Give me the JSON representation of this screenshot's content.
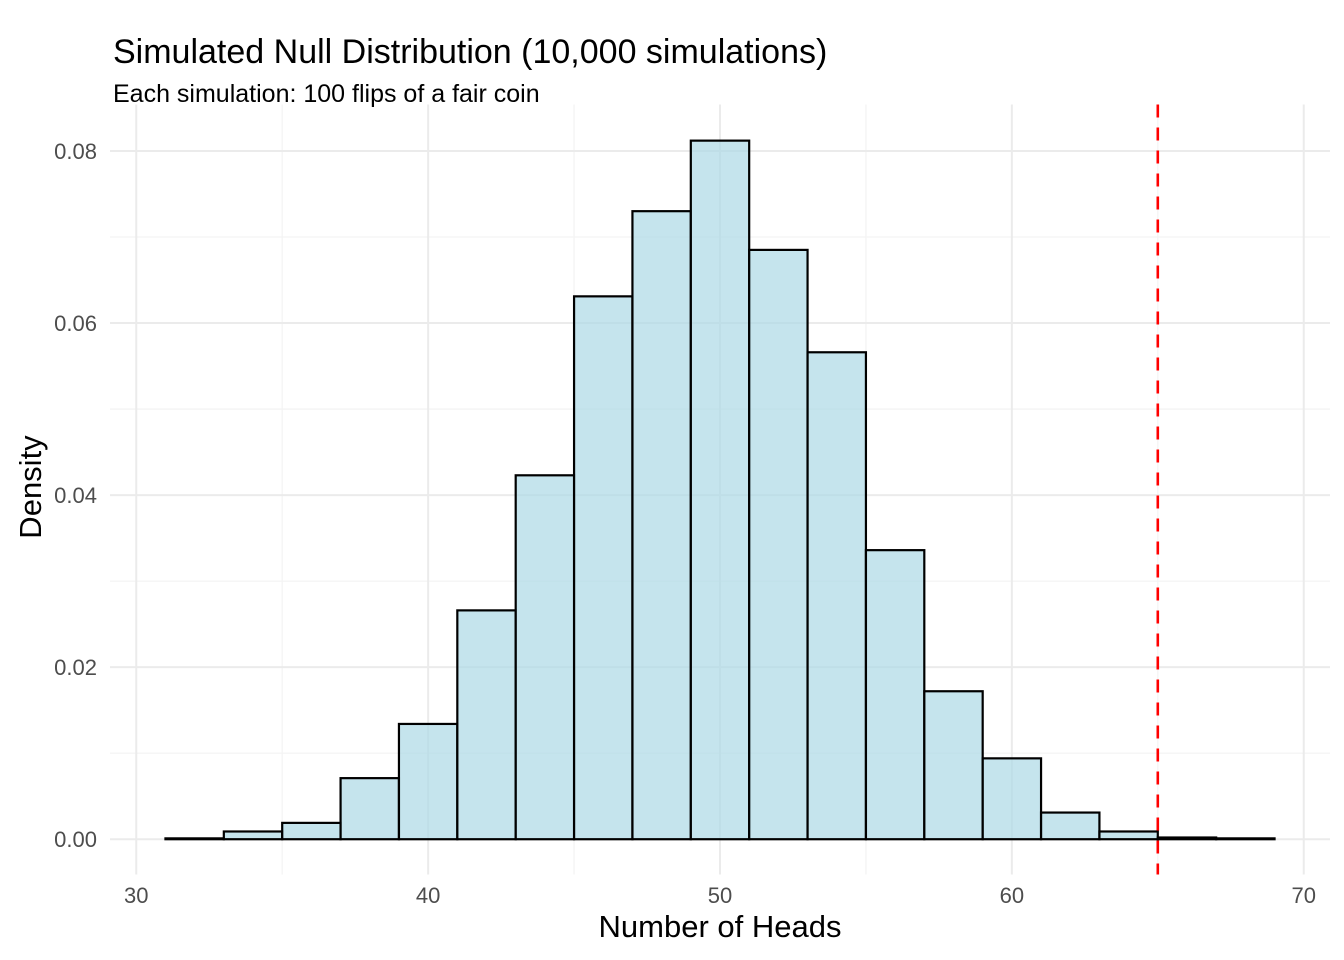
{
  "chart_data": {
    "type": "bar",
    "subtype": "histogram",
    "title": "Simulated Null Distribution (10,000 simulations)",
    "subtitle": "Each simulation: 100 flips of a fair coin",
    "xlabel": "Number of Heads",
    "ylabel": "Density",
    "x_major_ticks": [
      30,
      40,
      50,
      60,
      70
    ],
    "x_minor_ticks": [
      35,
      45,
      55,
      65
    ],
    "y_major_ticks": [
      0,
      0.02,
      0.04,
      0.06,
      0.08
    ],
    "y_tick_labels": [
      "0.00",
      "0.02",
      "0.04",
      "0.06",
      "0.08"
    ],
    "y_minor_ticks": [
      0.01,
      0.03,
      0.05,
      0.07
    ],
    "xlim": [
      29.1,
      70.9
    ],
    "ylim": [
      -0.0041,
      0.0854
    ],
    "bin_width": 2,
    "bins": [
      {
        "x0": 31,
        "x1": 33,
        "density": 0.0001
      },
      {
        "x0": 33,
        "x1": 35,
        "density": 0.0009
      },
      {
        "x0": 35,
        "x1": 37,
        "density": 0.0019
      },
      {
        "x0": 37,
        "x1": 39,
        "density": 0.0071
      },
      {
        "x0": 39,
        "x1": 41,
        "density": 0.0134
      },
      {
        "x0": 41,
        "x1": 43,
        "density": 0.0266
      },
      {
        "x0": 43,
        "x1": 45,
        "density": 0.0423
      },
      {
        "x0": 45,
        "x1": 47,
        "density": 0.0631
      },
      {
        "x0": 47,
        "x1": 49,
        "density": 0.073
      },
      {
        "x0": 49,
        "x1": 51,
        "density": 0.0812
      },
      {
        "x0": 51,
        "x1": 53,
        "density": 0.0685
      },
      {
        "x0": 53,
        "x1": 55,
        "density": 0.0566
      },
      {
        "x0": 55,
        "x1": 57,
        "density": 0.0336
      },
      {
        "x0": 57,
        "x1": 59,
        "density": 0.0172
      },
      {
        "x0": 59,
        "x1": 61,
        "density": 0.0094
      },
      {
        "x0": 61,
        "x1": 63,
        "density": 0.0031
      },
      {
        "x0": 63,
        "x1": 65,
        "density": 0.0009
      },
      {
        "x0": 65,
        "x1": 67,
        "density": 0.0002
      },
      {
        "x0": 67,
        "x1": 69,
        "density": 0.0001
      }
    ],
    "vline": {
      "x": 65,
      "style": "dashed"
    },
    "legend_position": "none",
    "grid": "on",
    "colors": {
      "bar_fill": "#ADD8E6",
      "bar_fill_alpha": 0.7,
      "bar_stroke": "#000000",
      "vline": "#FF0000",
      "grid_major": "#EBEBEB",
      "grid_minor": "#F4F4F4",
      "tick_label": "#4D4D4D",
      "text": "#000000",
      "background": "#FFFFFF"
    }
  }
}
